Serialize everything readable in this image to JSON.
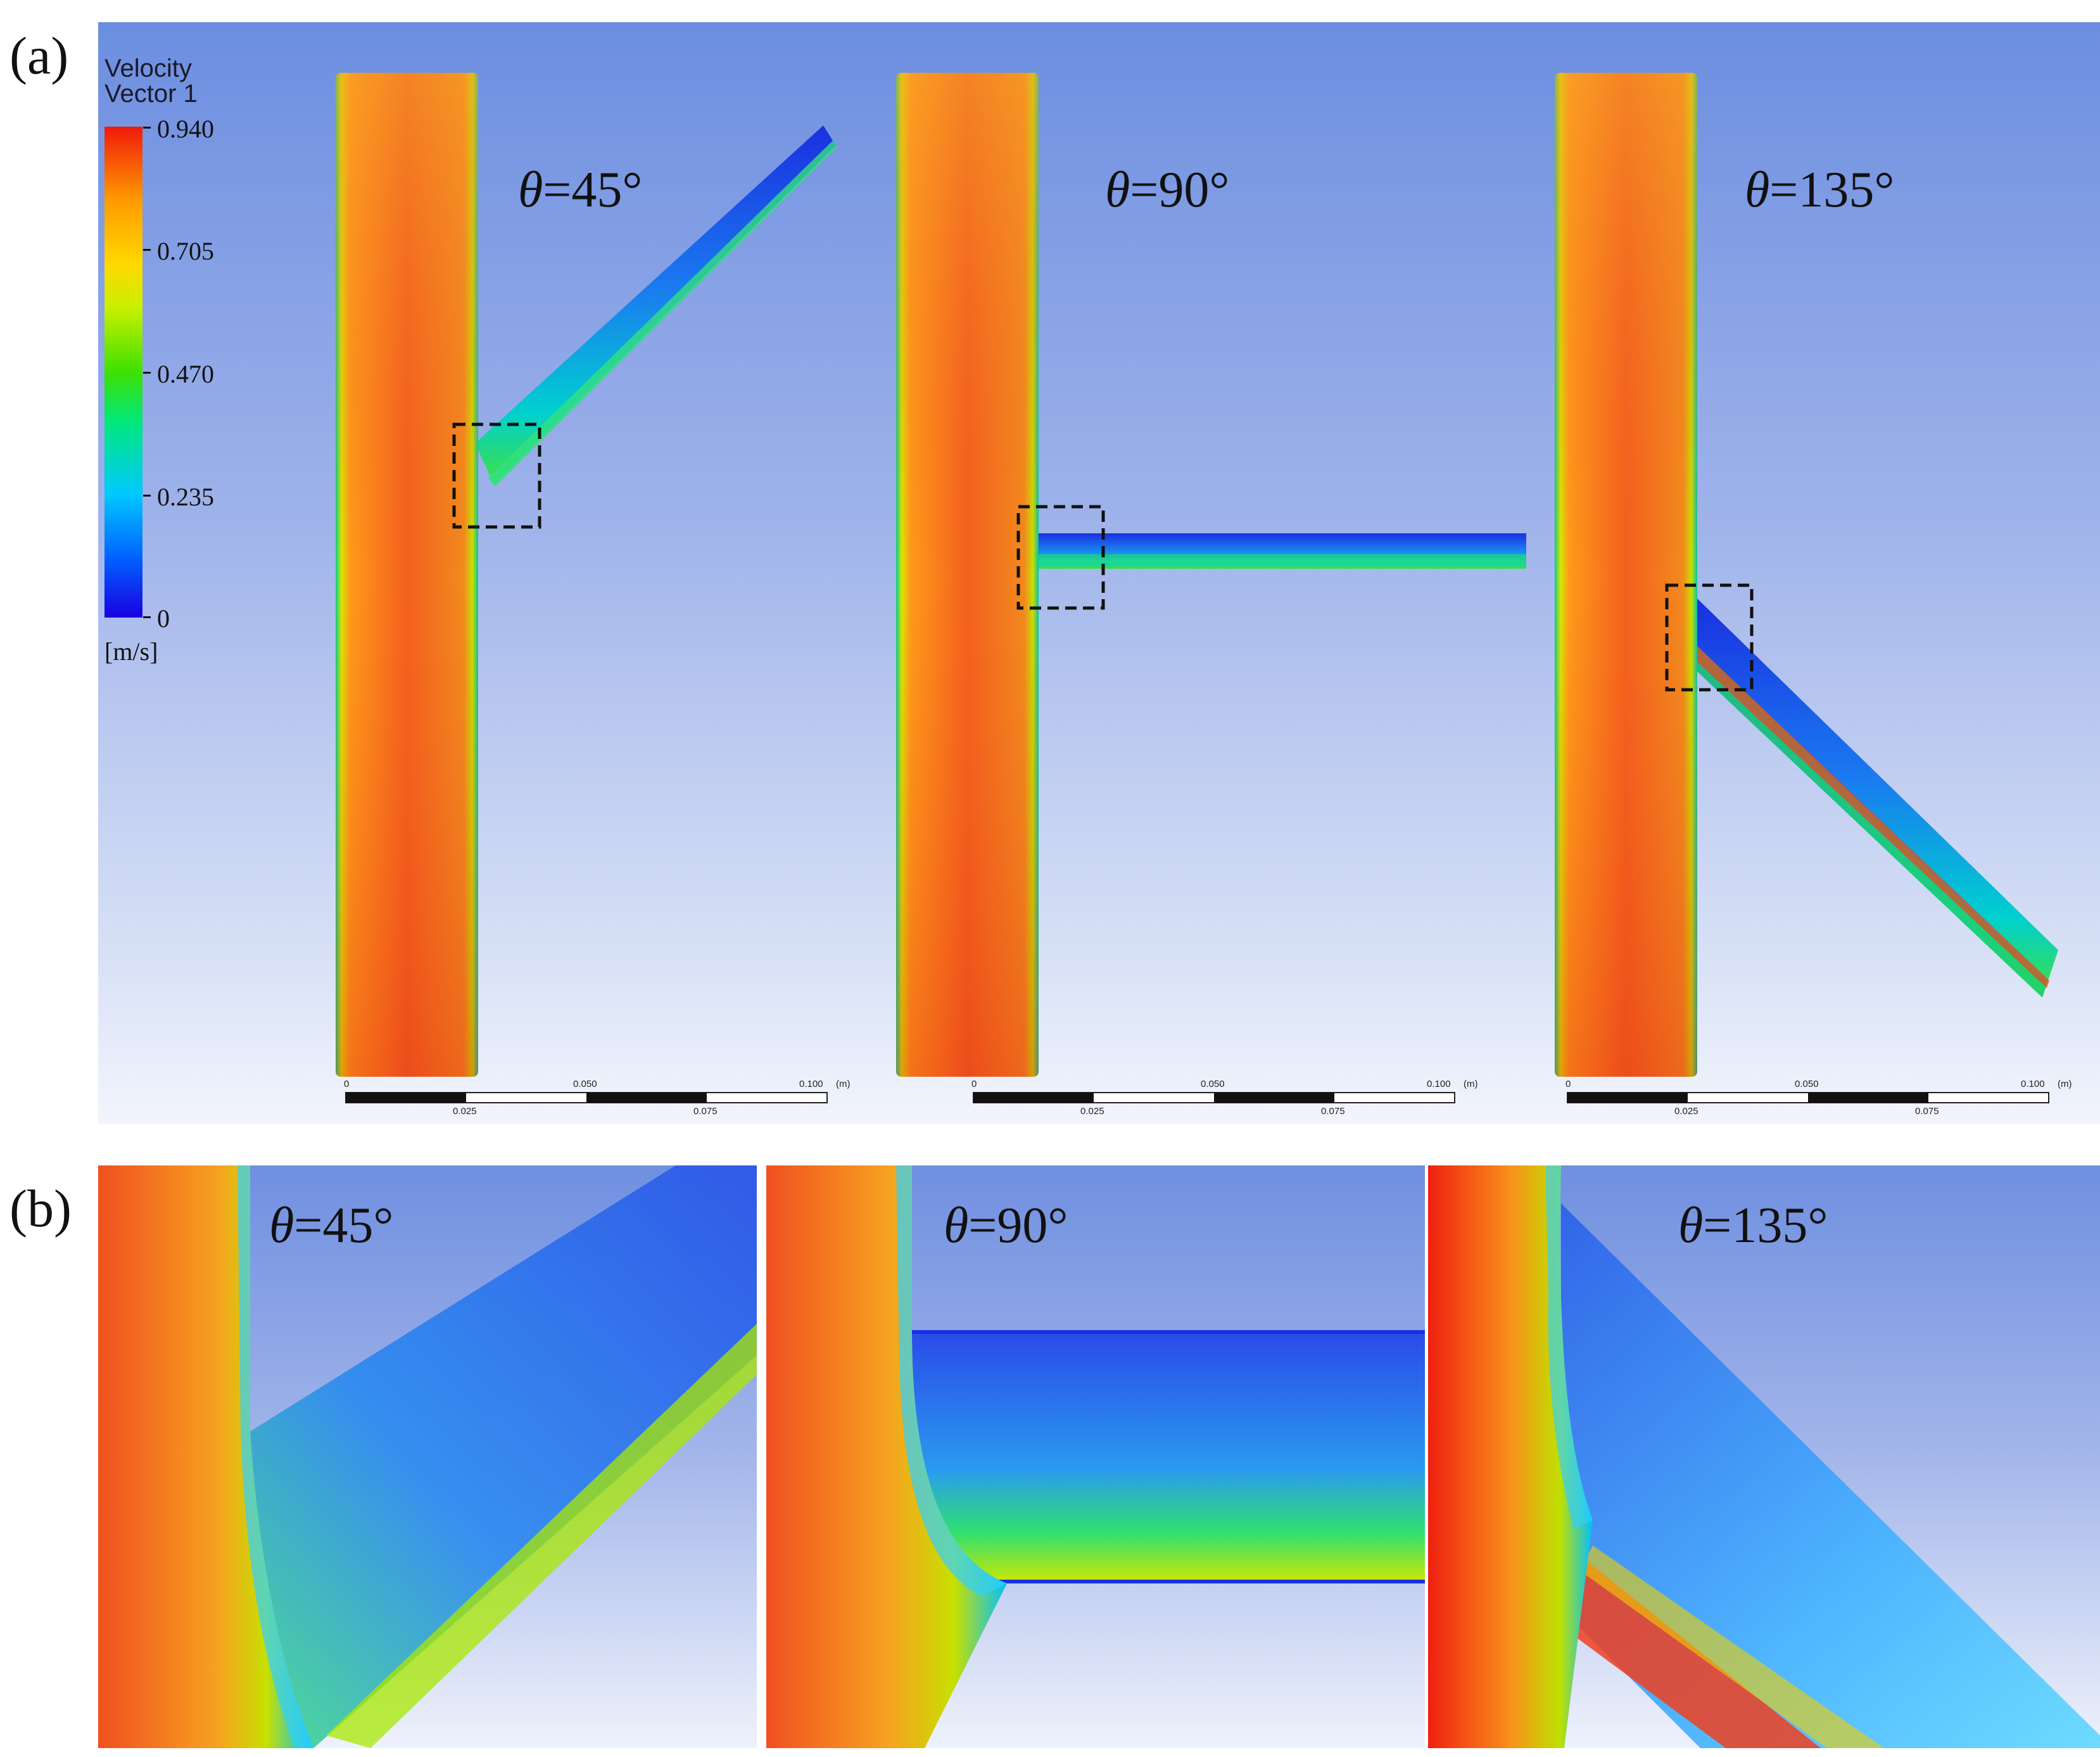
{
  "panel_a": {
    "label": "(a)",
    "legend": {
      "title_line1": "Velocity",
      "title_line2": "Vector 1",
      "ticks": [
        "0.940",
        "0.705",
        "0.470",
        "0.235",
        "0"
      ],
      "unit": "[m/s]"
    },
    "cases": [
      {
        "theta_symbol": "θ",
        "angle_text": "=45°"
      },
      {
        "theta_symbol": "θ",
        "angle_text": "=90°"
      },
      {
        "theta_symbol": "θ",
        "angle_text": "=135°"
      }
    ],
    "scale_bar": {
      "top_labels": [
        "0",
        "0.050",
        "0.100",
        "(m)"
      ],
      "bottom_labels": [
        "0.025",
        "0.075"
      ]
    }
  },
  "panel_b": {
    "label": "(b)",
    "cases": [
      {
        "theta_symbol": "θ",
        "angle_text": "=45°"
      },
      {
        "theta_symbol": "θ",
        "angle_text": "=90°"
      },
      {
        "theta_symbol": "θ",
        "angle_text": "=135°"
      }
    ]
  },
  "colors": {
    "background_top": "#6c8ee0",
    "background_bottom": "#f2f5fd",
    "main_pipe": "#f0581a",
    "branch_flow": "#1e78f0",
    "low_velocity": "#1a00e0",
    "high_velocity": "#f01a0a"
  }
}
